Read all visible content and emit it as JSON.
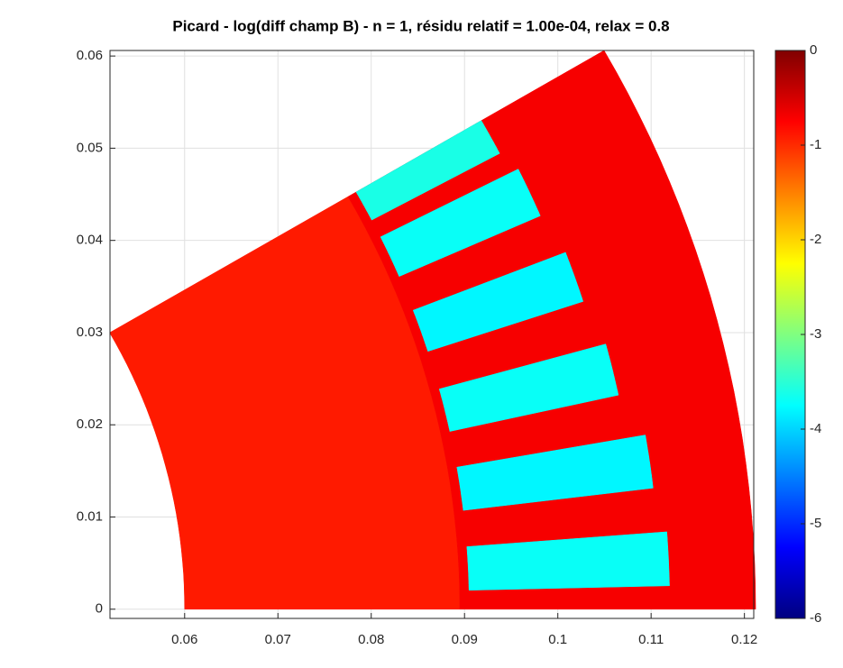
{
  "chart_data": {
    "type": "field",
    "title": "Picard - log(diff champ B) - n = 1, résidu relatif = 1.00e-04, relax = 0.8",
    "xlim": [
      0.052,
      0.121
    ],
    "ylim": [
      -0.001,
      0.0606
    ],
    "xticks": [
      0.06,
      0.07,
      0.08,
      0.09,
      0.1,
      0.11,
      0.12
    ],
    "yticks": [
      0,
      0.01,
      0.02,
      0.03,
      0.04,
      0.05,
      0.06
    ],
    "grid": true,
    "colormap": "jet",
    "clim": [
      -6,
      0
    ],
    "colorbar_ticks": [
      0,
      -1,
      -2,
      -3,
      -4,
      -5,
      -6
    ],
    "regions": [
      {
        "name": "rotor",
        "r": [
          0.06,
          0.0895
        ],
        "theta": [
          0,
          30
        ],
        "value": -0.9
      },
      {
        "name": "stator",
        "r": [
          0.0895,
          0.1212
        ],
        "theta": [
          0,
          30
        ],
        "value": -0.7
      },
      {
        "name": "slot",
        "r": [
          0.0905,
          0.112
        ],
        "theta": [
          1.3,
          4.3
        ],
        "value": -3.7
      },
      {
        "name": "slot",
        "r": [
          0.0905,
          0.111
        ],
        "theta": [
          6.8,
          9.8
        ],
        "value": -3.8
      },
      {
        "name": "slot",
        "r": [
          0.0905,
          0.109
        ],
        "theta": [
          12.3,
          15.3
        ],
        "value": -3.7
      },
      {
        "name": "slot",
        "r": [
          0.0905,
          0.108
        ],
        "theta": [
          18.0,
          21.0
        ],
        "value": -3.8
      },
      {
        "name": "slot",
        "r": [
          0.0905,
          0.107
        ],
        "theta": [
          23.5,
          26.5
        ],
        "value": -3.7
      },
      {
        "name": "slot",
        "r": [
          0.0905,
          0.106
        ],
        "theta": [
          27.8,
          30
        ],
        "value": -3.6
      }
    ]
  }
}
